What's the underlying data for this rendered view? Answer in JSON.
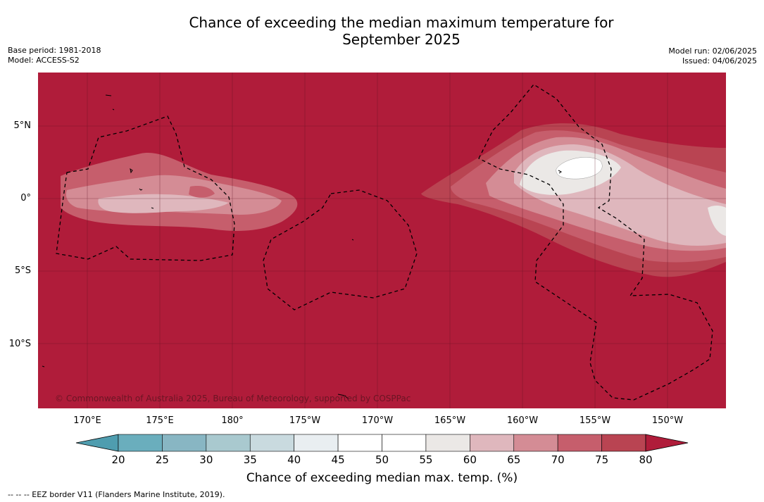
{
  "title": {
    "line1": "Chance of exceeding the median maximum temperature for",
    "line2": "September 2025"
  },
  "meta": {
    "base_period": "Base period: 1981-2018",
    "model": "Model: ACCESS-S2",
    "model_run": "Model run: 02/06/2025",
    "issued": "Issued: 04/06/2025"
  },
  "map": {
    "copyright": "© Commonwealth of Australia 2025, Bureau of Meteorology, supported by COSPPac",
    "lat_labels": [
      "5°N",
      "0°",
      "5°S",
      "10°S"
    ],
    "lon_labels": [
      "170°E",
      "175°E",
      "180°",
      "175°W",
      "170°W",
      "165°W",
      "160°W",
      "155°W",
      "150°W"
    ],
    "background_color": "#b01c3a"
  },
  "colorbar": {
    "ticks": [
      "20",
      "25",
      "30",
      "35",
      "40",
      "45",
      "50",
      "55",
      "60",
      "65",
      "70",
      "75",
      "80"
    ],
    "colors": [
      "#4f9daf",
      "#6aaebd",
      "#88b6c3",
      "#a9c9cf",
      "#c9dadf",
      "#e9eef1",
      "#ffffff",
      "#ffffff",
      "#ebe8e6",
      "#dfb7bd",
      "#d48c95",
      "#c65e6c",
      "#b94452",
      "#b01c3a"
    ],
    "label": "Chance of exceeding median max. temp. (%)"
  },
  "footnote": "--  --  -- EEZ border V11 (Flanders Marine Institute, 2019)."
}
